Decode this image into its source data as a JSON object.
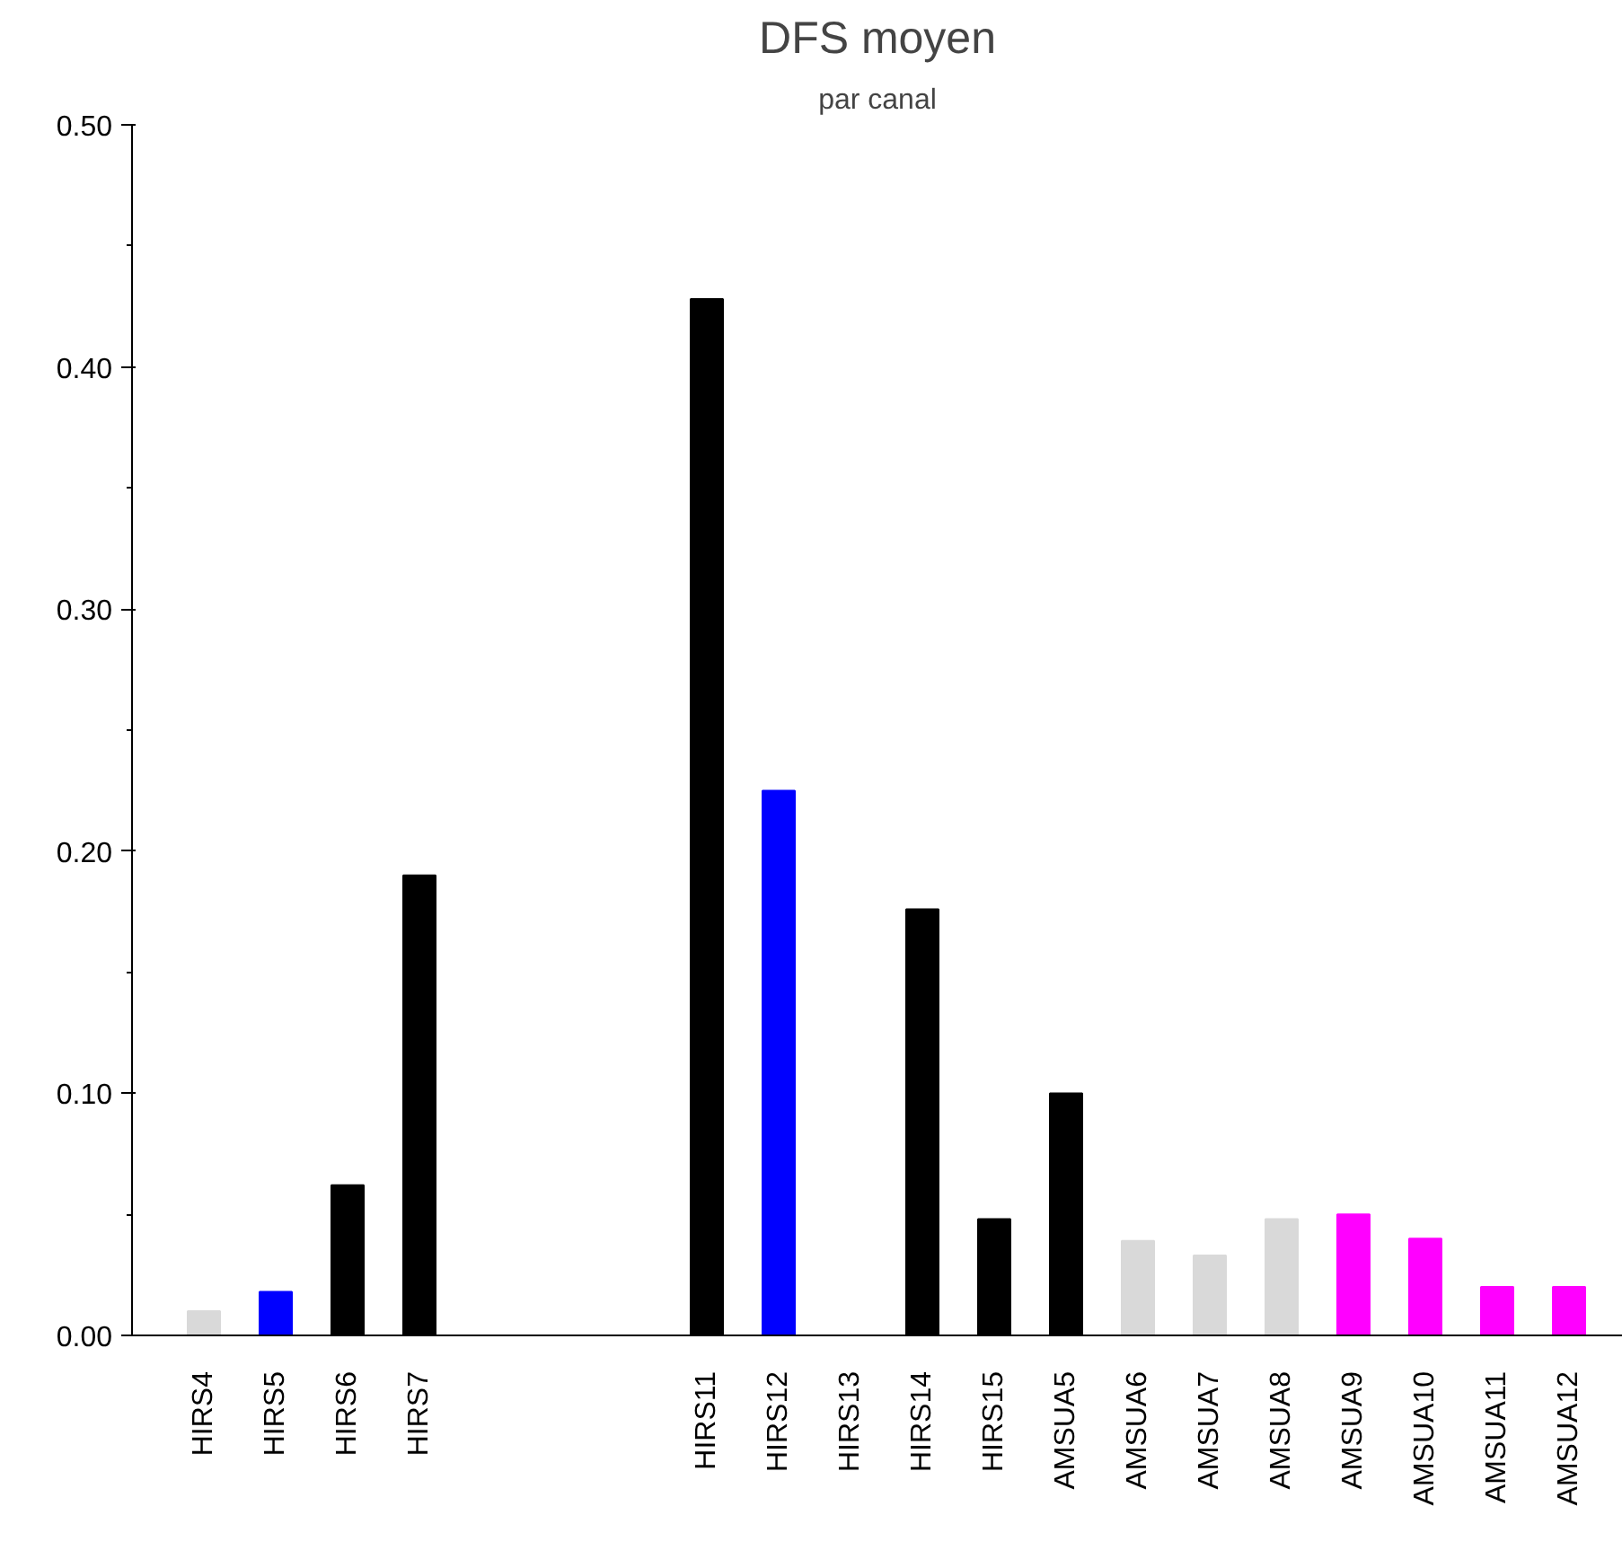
{
  "chart_data": {
    "type": "bar",
    "title": "DFS moyen",
    "subtitle": "par canal",
    "categories": [
      "HIRS4",
      "HIRS5",
      "HIRS6",
      "HIRS7",
      null,
      null,
      null,
      "HIRS11",
      "HIRS12",
      "HIRS13",
      "HIRS14",
      "HIRS15",
      "AMSUA5",
      "AMSUA6",
      "AMSUA7",
      "AMSUA8",
      "AMSUA9",
      "AMSUA10",
      "AMSUA11",
      "AMSUA12"
    ],
    "values": [
      0.01,
      0.018,
      0.062,
      0.19,
      null,
      null,
      null,
      0.428,
      0.225,
      null,
      0.176,
      0.048,
      0.1,
      0.039,
      0.033,
      0.048,
      0.05,
      0.04,
      0.02,
      0.02
    ],
    "colors": [
      "#d9d9d9",
      "#0000ff",
      "#000000",
      "#000000",
      "#000000",
      "#000000",
      "#000000",
      "#000000",
      "#0000ff",
      "#000000",
      "#000000",
      "#000000",
      "#000000",
      "#d9d9d9",
      "#d9d9d9",
      "#d9d9d9",
      "#ff00ff",
      "#ff00ff",
      "#ff00ff",
      "#ff00ff"
    ],
    "ylim": [
      0,
      0.5
    ],
    "yticks": [
      {
        "value": 0,
        "label": "0.00"
      },
      {
        "value": 0.1,
        "label": "0.10"
      },
      {
        "value": 0.2,
        "label": "0.20"
      },
      {
        "value": 0.3,
        "label": "0.30"
      },
      {
        "value": 0.4,
        "label": "0.40"
      },
      {
        "value": 0.5,
        "label": "0.50"
      }
    ],
    "grid": false
  }
}
